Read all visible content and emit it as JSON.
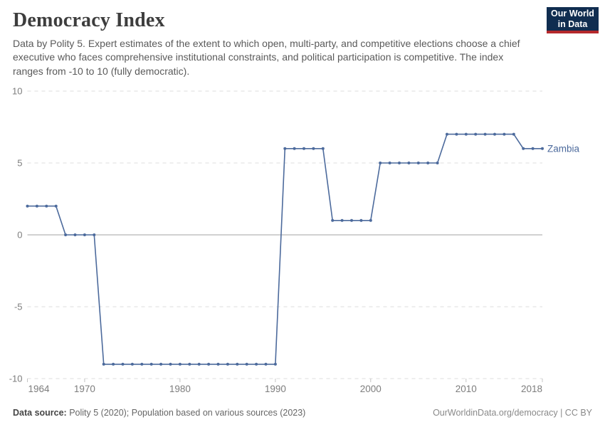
{
  "header": {
    "title": "Democracy Index",
    "subtitle": "Data by Polity 5. Expert estimates of the extent to which open, multi-party, and competitive elections choose a chief executive who faces comprehensive institutional constraints, and political participation is competitive. The index ranges from -10 to 10 (fully democratic).",
    "logo": {
      "line1": "Our World",
      "line2": "in Data",
      "bg_color": "#102d50",
      "accent_color": "#b5292c"
    }
  },
  "chart_data": {
    "type": "line",
    "title": "Democracy Index",
    "entity": "Zambia",
    "xlabel": "",
    "ylabel": "",
    "xlim": [
      1964,
      2018
    ],
    "ylim": [
      -10,
      10
    ],
    "x_ticks": [
      1964,
      1970,
      1980,
      1990,
      2000,
      2010,
      2018
    ],
    "y_ticks": [
      -10,
      -5,
      0,
      5,
      10
    ],
    "grid": "horizontal-dashed, solid zero line",
    "legend_position": "end-of-line-label",
    "colors": {
      "line": "#4c6a9c",
      "grid": "#dcdcdc",
      "zero_line": "#a3a3a3",
      "tick": "#c4c4c4",
      "tick_label": "#7d7d7d"
    },
    "years": [
      1964,
      1965,
      1966,
      1967,
      1968,
      1969,
      1970,
      1971,
      1972,
      1973,
      1974,
      1975,
      1976,
      1977,
      1978,
      1979,
      1980,
      1981,
      1982,
      1983,
      1984,
      1985,
      1986,
      1987,
      1988,
      1989,
      1990,
      1991,
      1992,
      1993,
      1994,
      1995,
      1996,
      1997,
      1998,
      1999,
      2000,
      2001,
      2002,
      2003,
      2004,
      2005,
      2006,
      2007,
      2008,
      2009,
      2010,
      2011,
      2012,
      2013,
      2014,
      2015,
      2016,
      2017,
      2018
    ],
    "values": [
      2,
      2,
      2,
      2,
      0,
      0,
      0,
      0,
      -9,
      -9,
      -9,
      -9,
      -9,
      -9,
      -9,
      -9,
      -9,
      -9,
      -9,
      -9,
      -9,
      -9,
      -9,
      -9,
      -9,
      -9,
      -9,
      6,
      6,
      6,
      6,
      6,
      1,
      1,
      1,
      1,
      1,
      5,
      5,
      5,
      5,
      5,
      5,
      5,
      7,
      7,
      7,
      7,
      7,
      7,
      7,
      7,
      6,
      6,
      6
    ]
  },
  "footer": {
    "source_label": "Data source:",
    "source_text": " Polity 5 (2020); Population based on various sources (2023)",
    "attribution": "OurWorldinData.org/democracy | CC BY"
  }
}
